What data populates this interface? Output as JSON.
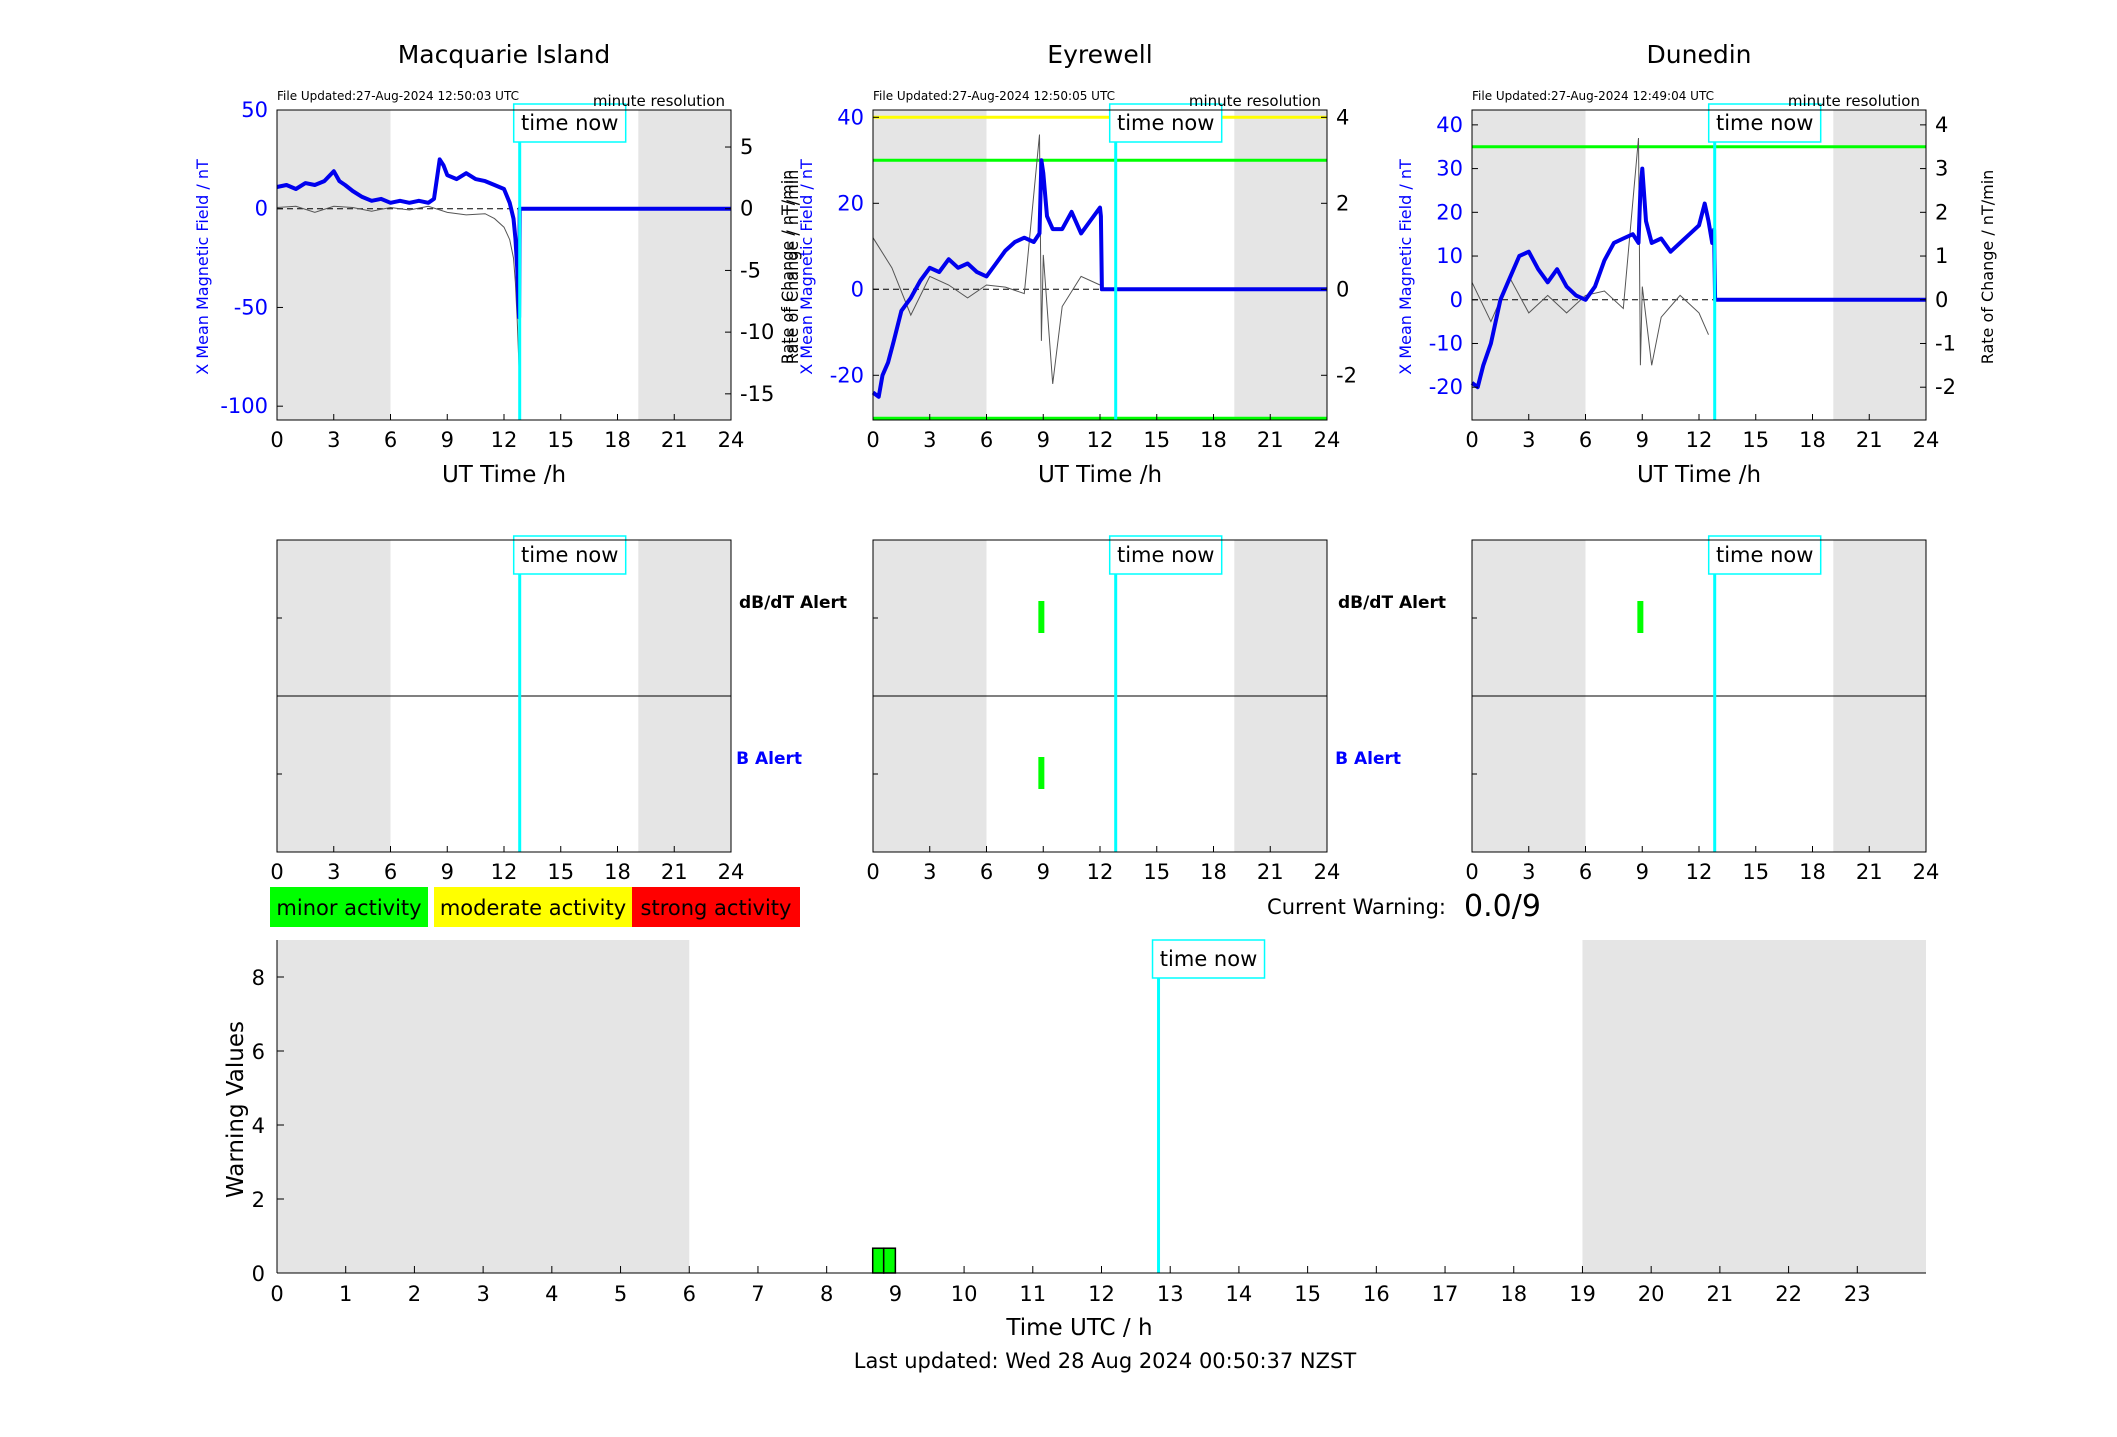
{
  "footer": {
    "last_updated": "Last updated: Wed 28 Aug 2024 00:50:37 NZST"
  },
  "labels": {
    "time_now": "time now",
    "ut_time": "UT Time /h",
    "time_utc": "Time UTC / h",
    "warning_values": "Warning Values",
    "dbdt_alert": "dB/dT Alert",
    "b_alert": "B Alert",
    "current_warning_label": "Current Warning:",
    "current_warning_value": "0.0/9",
    "minute_resolution": "minute resolution",
    "ylabel_left": "X Mean Magnetic Field / nT",
    "ylabel_right": "Rate of Change / nT/min"
  },
  "legend": [
    {
      "label": "minor activity",
      "color": "#00ff00"
    },
    {
      "label": "moderate activity",
      "color": "#ffff00"
    },
    {
      "label": "strong activity",
      "color": "#ff0000"
    }
  ],
  "colors": {
    "field": "#0000ee",
    "rate": "#000000",
    "time_now": "#00ffff",
    "night": "#e5e5e5",
    "axis_blue": "#0000ff"
  },
  "chart_data": [
    {
      "type": "line",
      "title": "Macquarie Island",
      "file_updated": "File Updated:27-Aug-2024 12:50:03 UTC",
      "xlabel": "UT Time /h",
      "xlim": [
        0,
        24
      ],
      "xticks": [
        0,
        3,
        6,
        9,
        12,
        15,
        18,
        21,
        24
      ],
      "ylim_left": [
        -107,
        50
      ],
      "yticks_left": [
        50,
        0,
        -50,
        -100
      ],
      "ylim_right": [
        -17.12,
        8
      ],
      "yticks_right": [
        5,
        0,
        -5,
        -10,
        -15
      ],
      "night_bands": [
        [
          0,
          6
        ],
        [
          19.1,
          24
        ]
      ],
      "time_now": 12.83,
      "thresholds": [],
      "field_series": {
        "name": "X Mean Magnetic Field / nT",
        "x": [
          0,
          0.5,
          1,
          1.5,
          2,
          2.5,
          3,
          3.3,
          3.6,
          4,
          4.5,
          5,
          5.5,
          6,
          6.5,
          7,
          7.5,
          8,
          8.3,
          8.6,
          8.8,
          9,
          9.5,
          10,
          10.5,
          11,
          11.5,
          12,
          12.3,
          12.5,
          12.6,
          12.7,
          12.75,
          12.8,
          12.83,
          13,
          18,
          24
        ],
        "y": [
          11,
          12,
          10,
          13,
          12,
          14,
          19,
          14,
          12,
          9,
          6,
          4,
          5,
          3,
          4,
          3,
          4,
          3,
          5,
          25,
          22,
          17,
          15,
          18,
          15,
          14,
          12,
          10,
          3,
          -5,
          -15,
          -30,
          -45,
          -55,
          0,
          0,
          0,
          0
        ]
      },
      "rate_series": {
        "name": "Rate of Change / nT/min",
        "x": [
          0,
          1,
          2,
          3,
          4,
          5,
          6,
          7,
          8,
          9,
          10,
          11,
          11.5,
          12,
          12.3,
          12.5,
          12.6,
          12.7,
          12.8
        ],
        "y": [
          0.1,
          0.2,
          -0.3,
          0.2,
          0.1,
          -0.2,
          0.1,
          -0.1,
          0.2,
          -0.3,
          -0.5,
          -0.4,
          -0.8,
          -1.5,
          -2.5,
          -4,
          -6,
          -9,
          -13
        ]
      }
    },
    {
      "type": "line",
      "title": "Eyrewell",
      "file_updated": "File Updated:27-Aug-2024 12:50:05 UTC",
      "xlabel": "UT Time /h",
      "xlim": [
        0,
        24
      ],
      "xticks": [
        0,
        3,
        6,
        9,
        12,
        15,
        18,
        21,
        24
      ],
      "ylim_left": [
        -30.4,
        41.7
      ],
      "yticks_left": [
        40,
        20,
        0,
        -20
      ],
      "ylim_right": [
        -3.04,
        4.17
      ],
      "yticks_right": [
        4,
        2,
        0,
        -2
      ],
      "night_bands": [
        [
          0,
          6
        ],
        [
          19.1,
          24
        ]
      ],
      "time_now": 12.83,
      "thresholds": [
        {
          "value": 4,
          "color": "#ffff00"
        },
        {
          "value": 3,
          "color": "#00ff00"
        },
        {
          "value": -3,
          "color": "#00ff00"
        }
      ],
      "field_series": {
        "name": "X Mean Magnetic Field / nT",
        "x": [
          0,
          0.3,
          0.5,
          0.8,
          1.1,
          1.5,
          2,
          2.5,
          3,
          3.5,
          4,
          4.5,
          5,
          5.5,
          6,
          6.5,
          7,
          7.5,
          8,
          8.5,
          8.8,
          8.9,
          9,
          9.2,
          9.5,
          10,
          10.5,
          11,
          11.5,
          12,
          12.05,
          12.1,
          24
        ],
        "y": [
          -24,
          -25,
          -20,
          -17,
          -12,
          -5,
          -2,
          2,
          5,
          4,
          7,
          5,
          6,
          4,
          3,
          6,
          9,
          11,
          12,
          11,
          13,
          30,
          27,
          17,
          14,
          14,
          18,
          13,
          16,
          19,
          17,
          0,
          0
        ]
      },
      "rate_series": {
        "name": "Rate of Change / nT/min",
        "x": [
          0,
          1,
          2,
          3,
          4,
          5,
          6,
          7,
          8,
          8.8,
          8.9,
          9,
          9.5,
          10,
          11,
          12
        ],
        "y": [
          1.2,
          0.5,
          -0.6,
          0.3,
          0.1,
          -0.2,
          0.1,
          0.05,
          -0.1,
          3.6,
          -1.2,
          0.8,
          -2.2,
          -0.4,
          0.3,
          0.1
        ]
      }
    },
    {
      "type": "line",
      "title": "Dunedin",
      "file_updated": "File Updated:27-Aug-2024 12:49:04 UTC",
      "xlabel": "UT Time /h",
      "xlim": [
        0,
        24
      ],
      "xticks": [
        0,
        3,
        6,
        9,
        12,
        15,
        18,
        21,
        24
      ],
      "ylim_left": [
        -27.5,
        43.4
      ],
      "yticks_left": [
        40,
        30,
        20,
        10,
        0,
        -10,
        -20
      ],
      "ylim_right": [
        -2.75,
        4.34
      ],
      "yticks_right": [
        4,
        3,
        2,
        1,
        0,
        -1,
        -2
      ],
      "night_bands": [
        [
          0,
          6
        ],
        [
          19.1,
          24
        ]
      ],
      "time_now": 12.83,
      "thresholds": [
        {
          "value": 3.5,
          "color": "#00ff00"
        }
      ],
      "field_series": {
        "name": "X Mean Magnetic Field / nT",
        "x": [
          0,
          0.3,
          0.6,
          1,
          1.5,
          2,
          2.5,
          3,
          3.5,
          4,
          4.5,
          5,
          5.5,
          6,
          6.5,
          7,
          7.5,
          8,
          8.5,
          8.8,
          8.9,
          9.0,
          9.2,
          9.5,
          10,
          10.5,
          11,
          11.5,
          12,
          12.3,
          12.5,
          12.7,
          12.8,
          12.85,
          24
        ],
        "y": [
          -19,
          -20,
          -15,
          -10,
          0,
          5,
          10,
          11,
          7,
          4,
          7,
          3,
          1,
          0,
          3,
          9,
          13,
          14,
          15,
          13,
          25,
          30,
          18,
          13,
          14,
          11,
          13,
          15,
          17,
          22,
          18,
          13,
          16,
          0,
          0
        ]
      },
      "rate_series": {
        "name": "Rate of Change / nT/min",
        "x": [
          0,
          1,
          2,
          3,
          4,
          5,
          6,
          7,
          8,
          8.8,
          8.9,
          9,
          9.5,
          10,
          11,
          12,
          12.5
        ],
        "y": [
          0.4,
          -0.5,
          0.5,
          -0.3,
          0.1,
          -0.3,
          0.1,
          0.2,
          -0.2,
          3.7,
          -1.5,
          0.3,
          -1.5,
          -0.4,
          0.1,
          -0.3,
          -0.8
        ]
      }
    },
    {
      "type": "bar",
      "title": "dB/dT Alert / B Alert",
      "station": "Macquarie Island",
      "xlim": [
        0,
        24
      ],
      "xticks": [
        0,
        3,
        6,
        9,
        12,
        15,
        18,
        21,
        24
      ],
      "night_bands": [
        [
          0,
          6
        ],
        [
          19.1,
          24
        ]
      ],
      "time_now": 12.83,
      "dbdt_alerts": [],
      "b_alerts": []
    },
    {
      "type": "bar",
      "title": "dB/dT Alert / B Alert",
      "station": "Eyrewell",
      "xlim": [
        0,
        24
      ],
      "xticks": [
        0,
        3,
        6,
        9,
        12,
        15,
        18,
        21,
        24
      ],
      "night_bands": [
        [
          0,
          6
        ],
        [
          19.1,
          24
        ]
      ],
      "time_now": 12.83,
      "dbdt_alerts": [
        8.9
      ],
      "b_alerts": [
        8.9
      ]
    },
    {
      "type": "bar",
      "title": "dB/dT Alert / B Alert",
      "station": "Dunedin",
      "xlim": [
        0,
        24
      ],
      "xticks": [
        0,
        3,
        6,
        9,
        12,
        15,
        18,
        21,
        24
      ],
      "night_bands": [
        [
          0,
          6
        ],
        [
          19.1,
          24
        ]
      ],
      "time_now": 12.83,
      "dbdt_alerts": [
        8.9
      ],
      "b_alerts": []
    },
    {
      "type": "bar",
      "title": "Warning Values",
      "xlabel": "Time UTC / h",
      "ylabel": "Warning Values",
      "xlim": [
        0,
        24
      ],
      "xticks": [
        0,
        1,
        2,
        3,
        4,
        5,
        6,
        7,
        8,
        9,
        10,
        11,
        12,
        13,
        14,
        15,
        16,
        17,
        18,
        19,
        20,
        21,
        22,
        23
      ],
      "ylim": [
        0,
        9
      ],
      "yticks": [
        0,
        2,
        4,
        6,
        8
      ],
      "night_bands": [
        [
          0,
          6
        ],
        [
          19,
          24
        ]
      ],
      "time_now": 12.83,
      "bars": [
        {
          "x": [
            8.67,
            8.83
          ],
          "value": 0.67,
          "color": "#00ff00"
        },
        {
          "x": [
            8.83,
            9.0
          ],
          "value": 0.67,
          "color": "#00ff00"
        }
      ]
    }
  ]
}
